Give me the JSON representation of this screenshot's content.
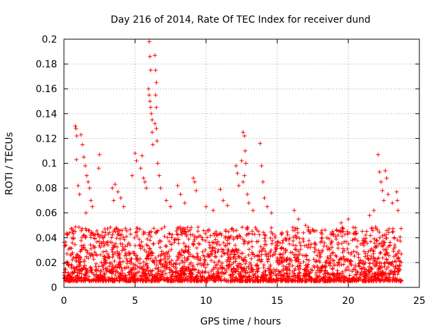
{
  "chart_data": {
    "type": "scatter",
    "title": "Day 216 of 2014, Rate Of TEC Index for receiver dund",
    "xlabel": "GPS time / hours",
    "ylabel": "ROTI / TECUs",
    "xlim": [
      0,
      25
    ],
    "ylim": [
      0,
      0.2
    ],
    "grid": true,
    "marker": "+",
    "color": "#ff0000",
    "x_ticks": [
      0,
      5,
      10,
      15,
      20,
      25
    ],
    "x_tick_labels": [
      "0",
      "5",
      "10",
      "15",
      "20",
      "25"
    ],
    "y_ticks": [
      0,
      0.02,
      0.04,
      0.06,
      0.08,
      0.1,
      0.12,
      0.14,
      0.16,
      0.18,
      0.2
    ],
    "y_tick_labels": [
      "0",
      "0.02",
      "0.04",
      "0.06",
      "0.08",
      "0.1",
      "0.12",
      "0.14",
      "0.16",
      "0.18",
      "0.2"
    ],
    "data_span_hours": [
      0,
      23.75
    ],
    "background_band": {
      "typical_min": 0.005,
      "typical_max": 0.04
    },
    "series": [
      {
        "name": "ROTI",
        "points": [
          {
            "x": 0.8,
            "y": 0.13
          },
          {
            "x": 0.85,
            "y": 0.128
          },
          {
            "x": 0.9,
            "y": 0.122
          },
          {
            "x": 0.88,
            "y": 0.103
          },
          {
            "x": 1.2,
            "y": 0.123
          },
          {
            "x": 1.3,
            "y": 0.115
          },
          {
            "x": 1.4,
            "y": 0.105
          },
          {
            "x": 1.5,
            "y": 0.098
          },
          {
            "x": 1.6,
            "y": 0.09
          },
          {
            "x": 1.7,
            "y": 0.085
          },
          {
            "x": 1.8,
            "y": 0.08
          },
          {
            "x": 1.9,
            "y": 0.07
          },
          {
            "x": 1.0,
            "y": 0.082
          },
          {
            "x": 1.1,
            "y": 0.075
          },
          {
            "x": 1.55,
            "y": 0.06
          },
          {
            "x": 2.0,
            "y": 0.065
          },
          {
            "x": 2.5,
            "y": 0.107
          },
          {
            "x": 2.45,
            "y": 0.096
          },
          {
            "x": 3.4,
            "y": 0.08
          },
          {
            "x": 3.6,
            "y": 0.083
          },
          {
            "x": 3.8,
            "y": 0.077
          },
          {
            "x": 3.5,
            "y": 0.07
          },
          {
            "x": 4.0,
            "y": 0.072
          },
          {
            "x": 4.2,
            "y": 0.065
          },
          {
            "x": 4.8,
            "y": 0.09
          },
          {
            "x": 5.0,
            "y": 0.108
          },
          {
            "x": 5.1,
            "y": 0.102
          },
          {
            "x": 5.4,
            "y": 0.096
          },
          {
            "x": 5.5,
            "y": 0.106
          },
          {
            "x": 5.6,
            "y": 0.088
          },
          {
            "x": 5.7,
            "y": 0.085
          },
          {
            "x": 5.8,
            "y": 0.08
          },
          {
            "x": 6.0,
            "y": 0.198
          },
          {
            "x": 6.05,
            "y": 0.186
          },
          {
            "x": 6.1,
            "y": 0.175
          },
          {
            "x": 5.95,
            "y": 0.16
          },
          {
            "x": 6.0,
            "y": 0.155
          },
          {
            "x": 6.05,
            "y": 0.15
          },
          {
            "x": 6.1,
            "y": 0.145
          },
          {
            "x": 6.15,
            "y": 0.14
          },
          {
            "x": 6.2,
            "y": 0.135
          },
          {
            "x": 6.2,
            "y": 0.125
          },
          {
            "x": 6.25,
            "y": 0.115
          },
          {
            "x": 6.4,
            "y": 0.187
          },
          {
            "x": 6.45,
            "y": 0.175
          },
          {
            "x": 6.5,
            "y": 0.165
          },
          {
            "x": 6.45,
            "y": 0.155
          },
          {
            "x": 6.5,
            "y": 0.145
          },
          {
            "x": 6.4,
            "y": 0.132
          },
          {
            "x": 6.5,
            "y": 0.128
          },
          {
            "x": 6.55,
            "y": 0.118
          },
          {
            "x": 6.6,
            "y": 0.1
          },
          {
            "x": 6.7,
            "y": 0.09
          },
          {
            "x": 6.8,
            "y": 0.08
          },
          {
            "x": 7.2,
            "y": 0.07
          },
          {
            "x": 7.5,
            "y": 0.065
          },
          {
            "x": 8.0,
            "y": 0.082
          },
          {
            "x": 8.2,
            "y": 0.075
          },
          {
            "x": 8.5,
            "y": 0.068
          },
          {
            "x": 9.1,
            "y": 0.088
          },
          {
            "x": 9.2,
            "y": 0.085
          },
          {
            "x": 9.3,
            "y": 0.078
          },
          {
            "x": 10.0,
            "y": 0.065
          },
          {
            "x": 10.5,
            "y": 0.062
          },
          {
            "x": 11.0,
            "y": 0.079
          },
          {
            "x": 11.2,
            "y": 0.07
          },
          {
            "x": 11.5,
            "y": 0.066
          },
          {
            "x": 12.1,
            "y": 0.098
          },
          {
            "x": 12.2,
            "y": 0.092
          },
          {
            "x": 12.3,
            "y": 0.082
          },
          {
            "x": 12.5,
            "y": 0.102
          },
          {
            "x": 12.6,
            "y": 0.125
          },
          {
            "x": 12.7,
            "y": 0.122
          },
          {
            "x": 12.75,
            "y": 0.11
          },
          {
            "x": 12.8,
            "y": 0.1
          },
          {
            "x": 12.7,
            "y": 0.09
          },
          {
            "x": 12.6,
            "y": 0.085
          },
          {
            "x": 12.9,
            "y": 0.075
          },
          {
            "x": 13.0,
            "y": 0.068
          },
          {
            "x": 13.3,
            "y": 0.062
          },
          {
            "x": 13.8,
            "y": 0.116
          },
          {
            "x": 13.9,
            "y": 0.098
          },
          {
            "x": 14.0,
            "y": 0.085
          },
          {
            "x": 14.1,
            "y": 0.072
          },
          {
            "x": 14.3,
            "y": 0.065
          },
          {
            "x": 14.6,
            "y": 0.06
          },
          {
            "x": 16.2,
            "y": 0.062
          },
          {
            "x": 16.5,
            "y": 0.055
          },
          {
            "x": 17.0,
            "y": 0.05
          },
          {
            "x": 19.5,
            "y": 0.052
          },
          {
            "x": 20.0,
            "y": 0.055
          },
          {
            "x": 20.5,
            "y": 0.048
          },
          {
            "x": 21.5,
            "y": 0.058
          },
          {
            "x": 21.8,
            "y": 0.062
          },
          {
            "x": 22.1,
            "y": 0.107
          },
          {
            "x": 22.2,
            "y": 0.093
          },
          {
            "x": 22.3,
            "y": 0.085
          },
          {
            "x": 22.4,
            "y": 0.078
          },
          {
            "x": 22.6,
            "y": 0.094
          },
          {
            "x": 22.7,
            "y": 0.088
          },
          {
            "x": 22.8,
            "y": 0.075
          },
          {
            "x": 22.5,
            "y": 0.07
          },
          {
            "x": 23.1,
            "y": 0.068
          },
          {
            "x": 23.4,
            "y": 0.077
          },
          {
            "x": 23.45,
            "y": 0.07
          },
          {
            "x": 23.5,
            "y": 0.062
          }
        ]
      }
    ]
  }
}
